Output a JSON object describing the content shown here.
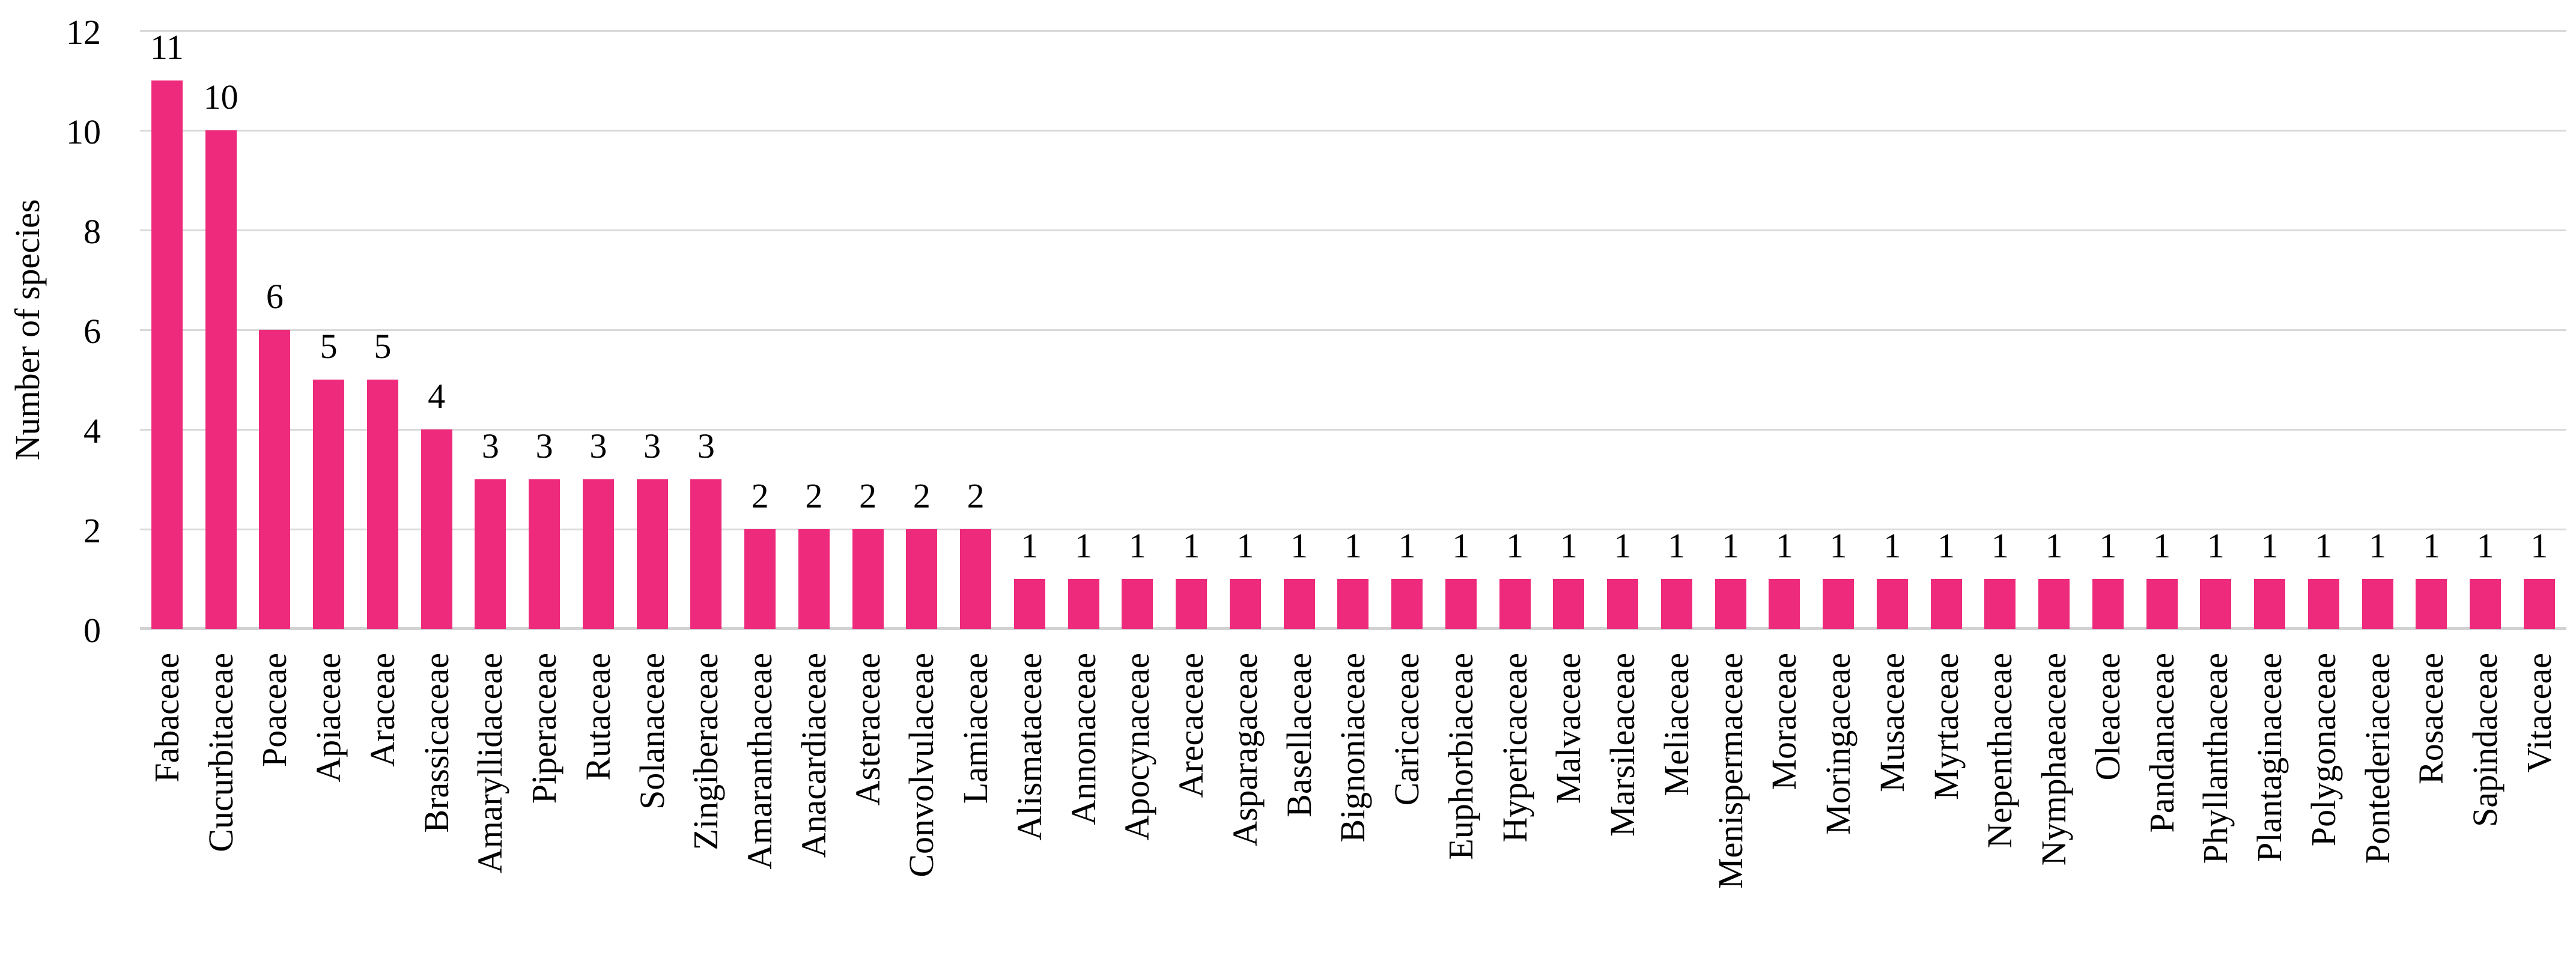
{
  "colors": {
    "bar": "#EE2A7C",
    "gridline": "#DADADA",
    "axis_line": "#D2D2D2",
    "text": "#000000",
    "background": "#FFFFFF"
  },
  "chart_data": {
    "type": "bar",
    "title": "",
    "xlabel": "",
    "ylabel": "Number of species",
    "ylim": [
      0,
      12
    ],
    "yticks": [
      0,
      2,
      4,
      6,
      8,
      10,
      12
    ],
    "grid": "horizontal gridlines on",
    "legend_position": "none",
    "data_labels_shown": true,
    "categories": [
      "Fabaceae",
      "Cucurbitaceae",
      "Poaceae",
      "Apiaceae",
      "Araceae",
      "Brassicaceae",
      "Amaryllidaceae",
      "Piperaceae",
      "Rutaceae",
      "Solanaceae",
      "Zingiberaceae",
      "Amaranthaceae",
      "Anacardiaceae",
      "Asteraceae",
      "Convolvulaceae",
      "Lamiaceae",
      "Alismataceae",
      "Annonaceae",
      "Apocynaceae",
      "Arecaceae",
      "Asparagaceae",
      "Basellaceae",
      "Bignoniaceae",
      "Caricaceae",
      "Euphorbiaceae",
      "Hypericaceae",
      "Malvaceae",
      "Marsileaceae",
      "Meliaceae",
      "Menispermaceae",
      "Moraceae",
      "Moringaceae",
      "Musaceae",
      "Myrtaceae",
      "Nepenthaceae",
      "Nymphaeaceae",
      "Oleaceae",
      "Pandanaceae",
      "Phyllanthaceae",
      "Plantaginaceae",
      "Polygonaceae",
      "Pontederiaceae",
      "Rosaceae",
      "Sapindaceae",
      "Vitaceae"
    ],
    "values": [
      11,
      10,
      6,
      5,
      5,
      4,
      3,
      3,
      3,
      3,
      3,
      2,
      2,
      2,
      2,
      2,
      1,
      1,
      1,
      1,
      1,
      1,
      1,
      1,
      1,
      1,
      1,
      1,
      1,
      1,
      1,
      1,
      1,
      1,
      1,
      1,
      1,
      1,
      1,
      1,
      1,
      1,
      1,
      1,
      1
    ]
  }
}
